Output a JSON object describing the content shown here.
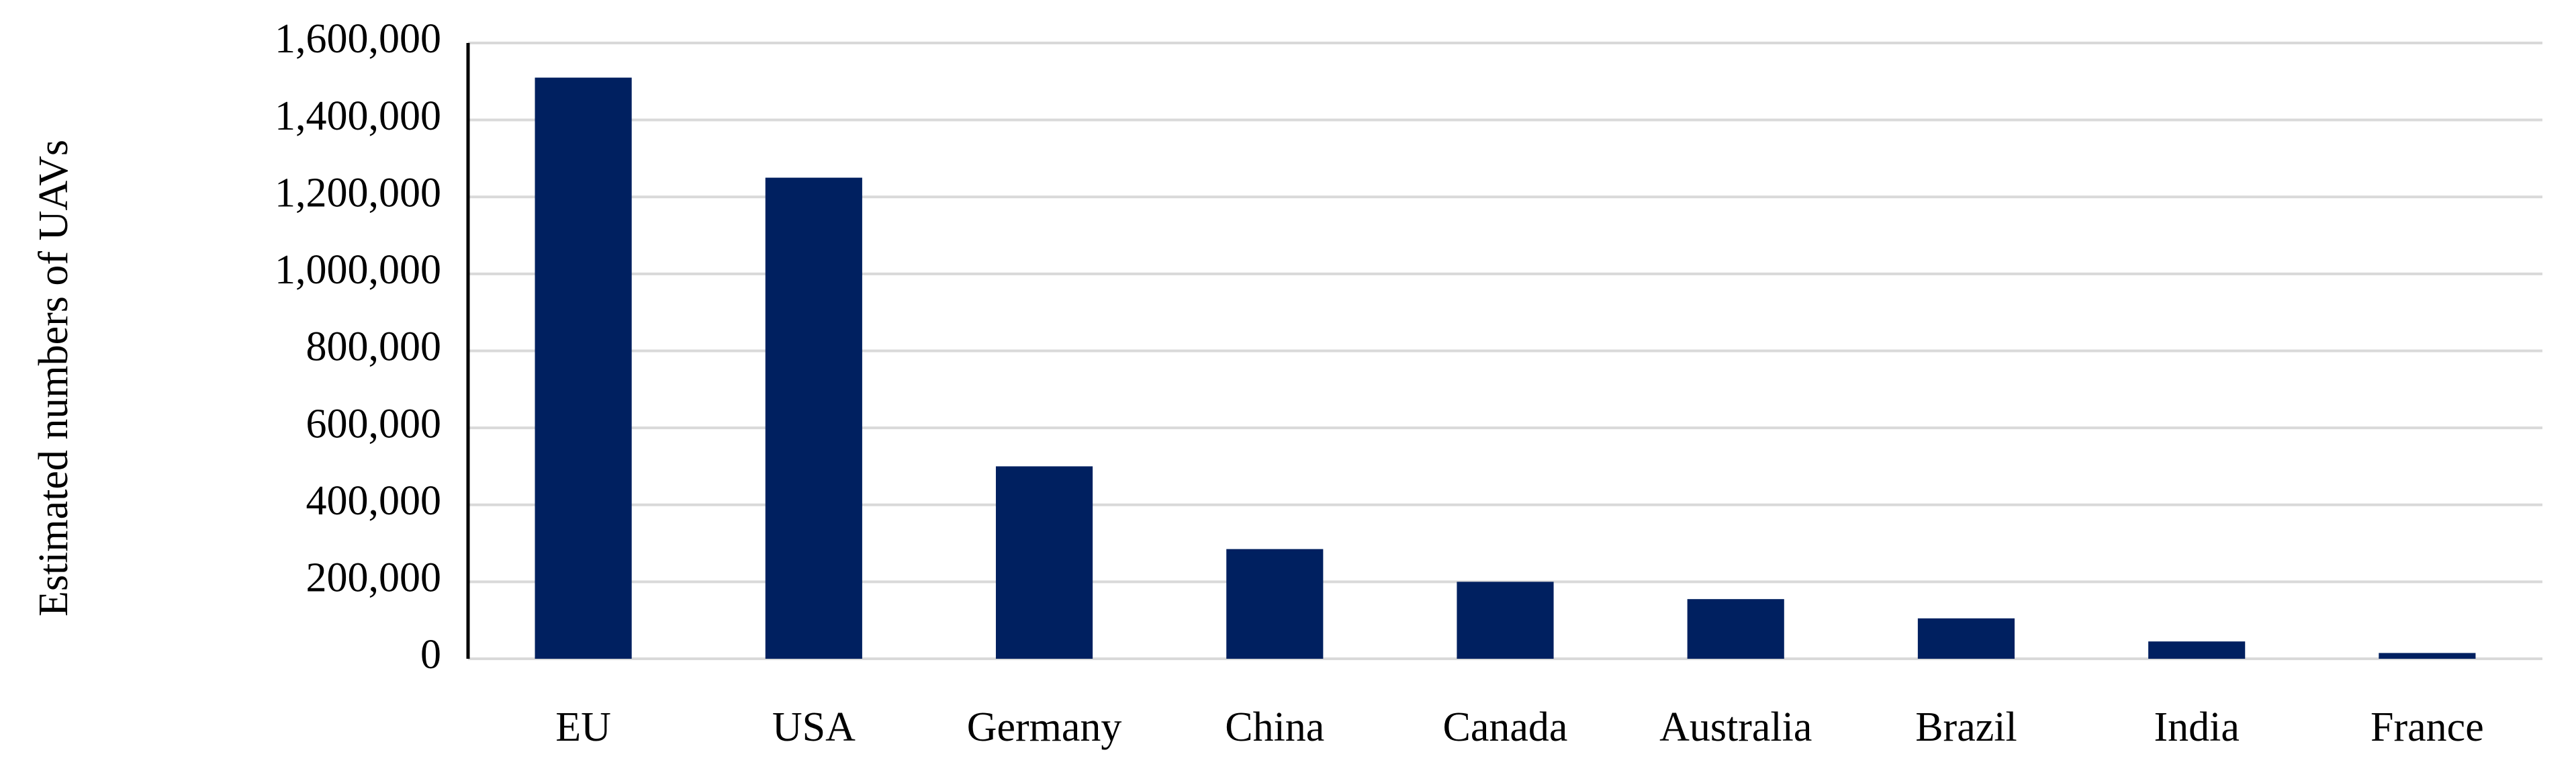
{
  "chart_data": {
    "type": "bar",
    "y_label": "Estimated numbers of UAVs",
    "categories": [
      "EU",
      "USA",
      "Germany",
      "China",
      "Canada",
      "Australia",
      "Brazil",
      "India",
      "France"
    ],
    "values": [
      1510000,
      1250000,
      500000,
      285000,
      200000,
      155000,
      105000,
      45000,
      15000
    ],
    "color": "#002060",
    "ylim": [
      0,
      1600000
    ],
    "yticks": [
      0,
      {
        "value": 200000,
        "label": "200,000"
      },
      {
        "value": 400000,
        "label": "400,000"
      },
      {
        "value": 600000,
        "label": "600,000"
      },
      {
        "value": 800000,
        "label": "800,000"
      },
      {
        "value": 1000000,
        "label": "1,000,000"
      },
      {
        "value": 1200000,
        "label": "1,200,000"
      },
      {
        "value": 1400000,
        "label": "1,400,000"
      },
      {
        "value": 1600000,
        "label": "1,600,000"
      }
    ],
    "grid": true
  }
}
